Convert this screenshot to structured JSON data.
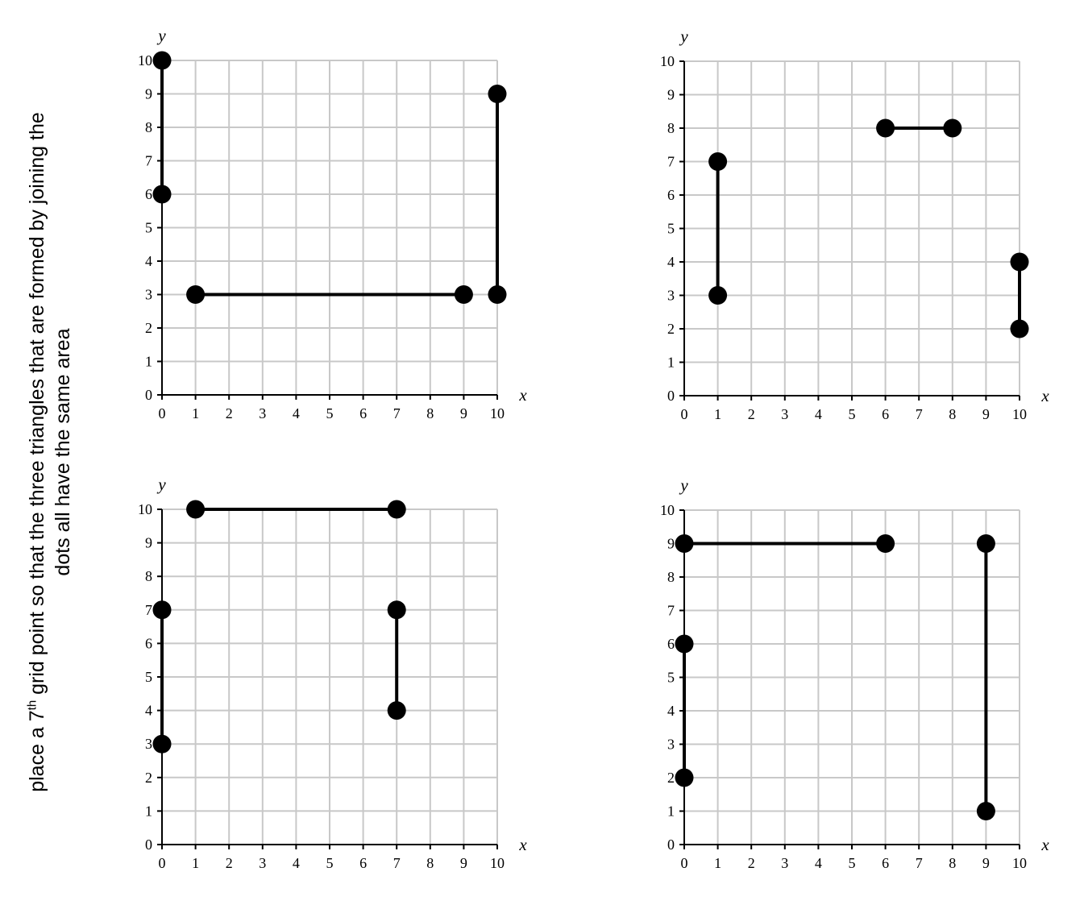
{
  "instruction": {
    "line1_pre": "place a 7",
    "line1_sup": "th",
    "line1_post": " grid point so that the three triangles that are formed by joining the",
    "line2": "dots all have the same area"
  },
  "chart_data": [
    {
      "type": "scatter",
      "xlabel": "x",
      "ylabel": "y",
      "xlim": [
        0,
        10
      ],
      "ylim": [
        0,
        10
      ],
      "xticks": [
        0,
        1,
        2,
        3,
        4,
        5,
        6,
        7,
        8,
        9,
        10
      ],
      "yticks": [
        0,
        1,
        2,
        3,
        4,
        5,
        6,
        7,
        8,
        9,
        10
      ],
      "grid": true,
      "segments": [
        {
          "from": [
            0,
            10
          ],
          "to": [
            0,
            6
          ]
        },
        {
          "from": [
            1,
            3
          ],
          "to": [
            9,
            3
          ]
        },
        {
          "from": [
            10,
            9
          ],
          "to": [
            10,
            3
          ]
        }
      ]
    },
    {
      "type": "scatter",
      "xlabel": "x",
      "ylabel": "y",
      "xlim": [
        0,
        10
      ],
      "ylim": [
        0,
        10
      ],
      "xticks": [
        0,
        1,
        2,
        3,
        4,
        5,
        6,
        7,
        8,
        9,
        10
      ],
      "yticks": [
        0,
        1,
        2,
        3,
        4,
        5,
        6,
        7,
        8,
        9,
        10
      ],
      "grid": true,
      "segments": [
        {
          "from": [
            1,
            7
          ],
          "to": [
            1,
            3
          ]
        },
        {
          "from": [
            6,
            8
          ],
          "to": [
            8,
            8
          ]
        },
        {
          "from": [
            10,
            4
          ],
          "to": [
            10,
            2
          ]
        }
      ]
    },
    {
      "type": "scatter",
      "xlabel": "x",
      "ylabel": "y",
      "xlim": [
        0,
        10
      ],
      "ylim": [
        0,
        10
      ],
      "xticks": [
        0,
        1,
        2,
        3,
        4,
        5,
        6,
        7,
        8,
        9,
        10
      ],
      "yticks": [
        0,
        1,
        2,
        3,
        4,
        5,
        6,
        7,
        8,
        9,
        10
      ],
      "grid": true,
      "segments": [
        {
          "from": [
            1,
            10
          ],
          "to": [
            7,
            10
          ]
        },
        {
          "from": [
            0,
            7
          ],
          "to": [
            0,
            3
          ]
        },
        {
          "from": [
            7,
            7
          ],
          "to": [
            7,
            4
          ]
        }
      ]
    },
    {
      "type": "scatter",
      "xlabel": "x",
      "ylabel": "y",
      "xlim": [
        0,
        10
      ],
      "ylim": [
        0,
        10
      ],
      "xticks": [
        0,
        1,
        2,
        3,
        4,
        5,
        6,
        7,
        8,
        9,
        10
      ],
      "yticks": [
        0,
        1,
        2,
        3,
        4,
        5,
        6,
        7,
        8,
        9,
        10
      ],
      "grid": true,
      "segments": [
        {
          "from": [
            0,
            9
          ],
          "to": [
            6,
            9
          ]
        },
        {
          "from": [
            0,
            6
          ],
          "to": [
            0,
            2
          ]
        },
        {
          "from": [
            9,
            9
          ],
          "to": [
            9,
            1
          ]
        }
      ]
    }
  ]
}
